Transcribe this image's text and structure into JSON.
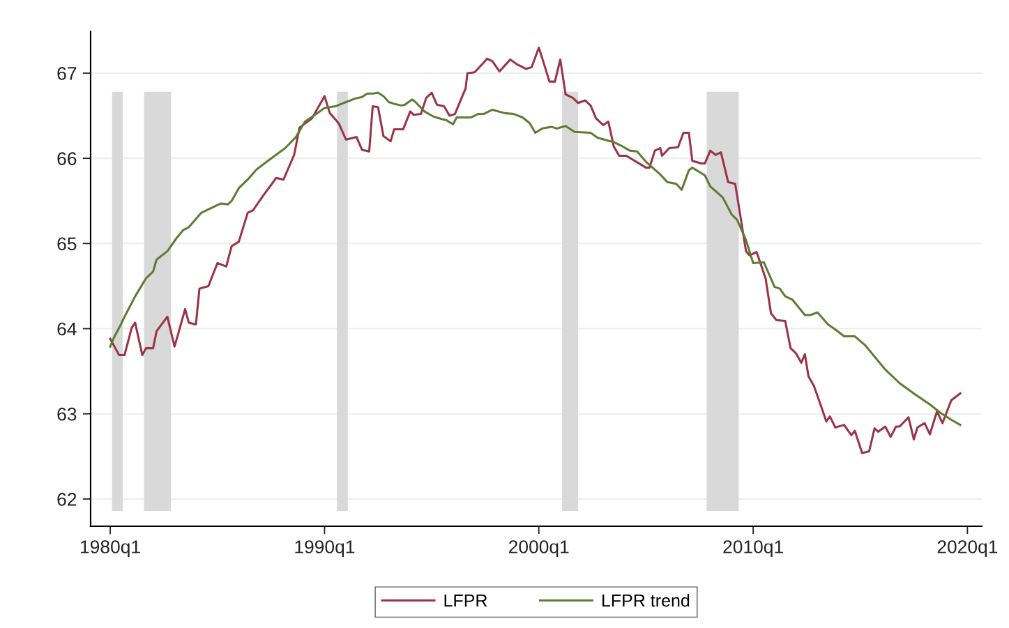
{
  "chart_data": {
    "type": "line",
    "xlim": [
      "1979-02",
      "2020-09"
    ],
    "ylim": [
      61.68,
      67.49
    ],
    "xticks": [
      {
        "value": "1980-01",
        "label": "1980q1"
      },
      {
        "value": "1990-01",
        "label": "1990q1"
      },
      {
        "value": "2000-01",
        "label": "2000q1"
      },
      {
        "value": "2010-01",
        "label": "2010q1"
      },
      {
        "value": "2020-01",
        "label": "2020q1"
      }
    ],
    "yticks": [
      62,
      63,
      64,
      65,
      66,
      67
    ],
    "grid": "y",
    "legend": "bottom",
    "bands": [
      {
        "axis": "x",
        "from": "1980-02",
        "to": "1980-08",
        "color": "#d9d9d9"
      },
      {
        "axis": "x",
        "from": "1981-08",
        "to": "1982-11",
        "color": "#d9d9d9"
      },
      {
        "axis": "x",
        "from": "1990-08",
        "to": "1991-02",
        "color": "#d9d9d9"
      },
      {
        "axis": "x",
        "from": "2001-02",
        "to": "2001-11",
        "color": "#d9d9d9"
      },
      {
        "axis": "x",
        "from": "2007-11",
        "to": "2009-05",
        "color": "#d9d9d9"
      }
    ],
    "series": [
      {
        "name": "LFPR",
        "color": "#9b3447",
        "x": [
          "1980-01",
          "1980-06",
          "1980-09",
          "1981-01",
          "1981-03",
          "1981-07",
          "1981-09",
          "1982-01",
          "1982-03",
          "1982-09",
          "1983-01",
          "1983-03",
          "1983-07",
          "1983-09",
          "1984-01",
          "1984-03",
          "1984-08",
          "1985-01",
          "1985-06",
          "1985-09",
          "1986-01",
          "1986-06",
          "1986-09",
          "1987-03",
          "1987-10",
          "1988-02",
          "1988-08",
          "1988-11",
          "1989-06",
          "1990-01",
          "1990-04",
          "1990-09",
          "1991-01",
          "1991-07",
          "1991-10",
          "1992-02",
          "1992-04",
          "1992-07",
          "1992-10",
          "1993-02",
          "1993-04",
          "1993-09",
          "1994-01",
          "1994-03",
          "1994-07",
          "1994-10",
          "1995-01",
          "1995-04",
          "1995-08",
          "1995-11",
          "1996-02",
          "1996-08",
          "1996-09",
          "1997-01",
          "1997-06",
          "1997-08",
          "1997-11",
          "1998-03",
          "1998-09",
          "1999-01",
          "1999-06",
          "1999-09",
          "2000-01",
          "2000-03",
          "2000-07",
          "2000-10",
          "2001-01",
          "2001-04",
          "2001-08",
          "2001-11",
          "2002-03",
          "2002-06",
          "2002-09",
          "2003-01",
          "2003-04",
          "2003-07",
          "2003-10",
          "2004-02",
          "2005-01",
          "2005-03",
          "2005-06",
          "2005-09",
          "2005-10",
          "2006-02",
          "2006-07",
          "2006-10",
          "2007-01",
          "2007-03",
          "2007-08",
          "2007-10",
          "2008-01",
          "2008-04",
          "2008-07",
          "2008-11",
          "2009-03",
          "2009-09",
          "2009-11",
          "2010-03",
          "2010-08",
          "2010-11",
          "2011-02",
          "2011-07",
          "2011-10",
          "2012-01",
          "2012-04",
          "2012-06",
          "2012-08",
          "2012-11",
          "2013-02",
          "2013-06",
          "2013-08",
          "2013-11",
          "2014-04",
          "2014-08",
          "2014-10",
          "2015-02",
          "2015-06",
          "2015-09",
          "2015-11",
          "2016-03",
          "2016-06",
          "2016-09",
          "2016-11",
          "2017-04",
          "2017-07",
          "2017-09",
          "2018-01",
          "2018-04",
          "2018-08",
          "2018-11",
          "2019-04",
          "2019-09"
        ],
        "values": [
          63.88,
          63.69,
          63.69,
          64.01,
          64.07,
          63.69,
          63.77,
          63.77,
          63.97,
          64.14,
          63.79,
          63.93,
          64.23,
          64.07,
          64.05,
          64.47,
          64.5,
          64.77,
          64.73,
          64.97,
          65.02,
          65.36,
          65.39,
          65.57,
          65.77,
          65.75,
          66.04,
          66.36,
          66.47,
          66.73,
          66.53,
          66.41,
          66.22,
          66.25,
          66.1,
          66.08,
          66.61,
          66.6,
          66.26,
          66.2,
          66.34,
          66.34,
          66.55,
          66.51,
          66.52,
          66.71,
          66.77,
          66.63,
          66.61,
          66.5,
          66.52,
          66.82,
          67.0,
          67.01,
          67.12,
          67.17,
          67.14,
          67.02,
          67.16,
          67.1,
          67.05,
          67.07,
          67.3,
          67.17,
          66.9,
          66.9,
          67.16,
          66.75,
          66.71,
          66.65,
          66.68,
          66.62,
          66.47,
          66.39,
          66.43,
          66.14,
          66.03,
          66.03,
          65.89,
          65.89,
          66.09,
          66.12,
          66.03,
          66.12,
          66.13,
          66.3,
          66.3,
          65.97,
          65.94,
          65.94,
          66.09,
          66.04,
          66.07,
          65.72,
          65.7,
          64.91,
          64.86,
          64.9,
          64.59,
          64.18,
          64.1,
          64.09,
          63.77,
          63.71,
          63.6,
          63.7,
          63.44,
          63.33,
          63.15,
          62.91,
          62.97,
          62.84,
          62.87,
          62.75,
          62.8,
          62.54,
          62.56,
          62.83,
          62.79,
          62.85,
          62.73,
          62.85,
          62.85,
          62.96,
          62.7,
          62.84,
          62.89,
          62.76,
          63.03,
          62.89,
          63.16,
          63.24
        ]
      },
      {
        "name": "LFPR trend",
        "color": "#5e7d34",
        "x": [
          "1980-01",
          "1980-03",
          "1980-07",
          "1980-09",
          "1981-03",
          "1981-09",
          "1982-01",
          "1982-03",
          "1982-09",
          "1983-02",
          "1983-06",
          "1983-09",
          "1984-04",
          "1984-09",
          "1985-03",
          "1985-07",
          "1985-09",
          "1986-01",
          "1986-06",
          "1986-11",
          "1987-06",
          "1988-03",
          "1988-09",
          "1989-02",
          "1989-07",
          "1990-01",
          "1990-07",
          "1991-01",
          "1991-06",
          "1991-10",
          "1992-01",
          "1992-04",
          "1992-07",
          "1992-10",
          "1993-01",
          "1993-04",
          "1993-08",
          "1993-10",
          "1994-02",
          "1994-04",
          "1994-09",
          "1995-02",
          "1995-07",
          "1995-09",
          "1996-01",
          "1996-03",
          "1996-11",
          "1997-03",
          "1997-06",
          "1997-11",
          "1998-06",
          "1998-11",
          "1999-04",
          "1999-08",
          "1999-11",
          "2000-03",
          "2000-08",
          "2000-11",
          "2001-04",
          "2001-09",
          "2002-06",
          "2002-10",
          "2003-07",
          "2003-11",
          "2004-04",
          "2004-08",
          "2005-01",
          "2005-09",
          "2006-01",
          "2006-06",
          "2006-09",
          "2007-01",
          "2007-03",
          "2007-10",
          "2008-01",
          "2008-08",
          "2009-01",
          "2009-04",
          "2009-09",
          "2010-01",
          "2010-07",
          "2011-01",
          "2011-04",
          "2011-07",
          "2011-11",
          "2012-06",
          "2012-09",
          "2013-01",
          "2013-07",
          "2013-11",
          "2014-04",
          "2014-10",
          "2015-04",
          "2016-03",
          "2016-11",
          "2017-07",
          "2018-04",
          "2018-10",
          "2019-04",
          "2019-09"
        ],
        "values": [
          63.79,
          63.89,
          64.05,
          64.14,
          64.38,
          64.59,
          64.67,
          64.81,
          64.91,
          65.06,
          65.16,
          65.19,
          65.36,
          65.41,
          65.47,
          65.46,
          65.5,
          65.65,
          65.75,
          65.87,
          65.98,
          66.12,
          66.25,
          66.43,
          66.5,
          66.59,
          66.61,
          66.66,
          66.7,
          66.72,
          66.76,
          66.76,
          66.77,
          66.73,
          66.66,
          66.64,
          66.62,
          66.63,
          66.69,
          66.66,
          66.55,
          66.49,
          66.46,
          66.45,
          66.4,
          66.48,
          66.48,
          66.52,
          66.52,
          66.57,
          66.53,
          66.52,
          66.48,
          66.41,
          66.3,
          66.35,
          66.37,
          66.35,
          66.38,
          66.31,
          66.3,
          66.24,
          66.19,
          66.15,
          66.09,
          66.08,
          65.96,
          65.81,
          65.72,
          65.7,
          65.63,
          65.86,
          65.89,
          65.8,
          65.67,
          65.54,
          65.34,
          65.28,
          65.04,
          64.77,
          64.78,
          64.49,
          64.47,
          64.38,
          64.34,
          64.16,
          64.16,
          64.19,
          64.05,
          63.99,
          63.91,
          63.91,
          63.8,
          63.52,
          63.36,
          63.24,
          63.11,
          63.01,
          62.93,
          62.87
        ]
      }
    ]
  }
}
